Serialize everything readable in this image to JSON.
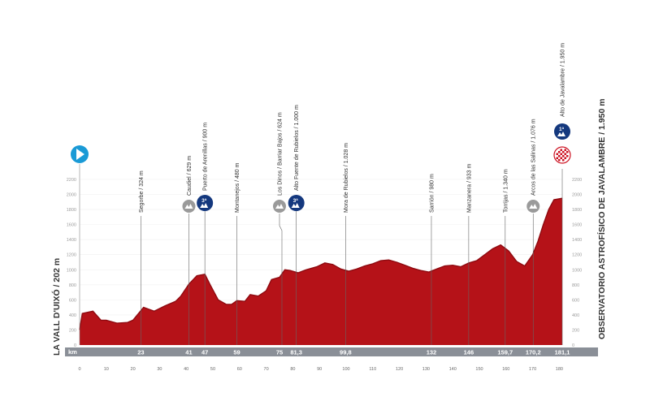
{
  "chart_data": {
    "type": "area",
    "start_label": "LA VALL D'UIXÓ / 202 m",
    "finish_label": "OBSERVATORIO ASTROFÍSICO DE JAVALAMBRE / 1.950 m",
    "km_label": "km",
    "xlim": [
      0,
      181.1
    ],
    "ylim": [
      0,
      2200
    ],
    "y_ticks_left": [
      0,
      200,
      400,
      600,
      800,
      1000,
      1200,
      1400,
      1600,
      1800,
      2000,
      2200
    ],
    "y_ticks_right": [
      0,
      200,
      400,
      600,
      800,
      1000,
      1200,
      1400,
      1600,
      1800,
      2000,
      2200
    ],
    "x_ticks": [
      0,
      10,
      20,
      30,
      40,
      50,
      60,
      70,
      80,
      90,
      100,
      110,
      120,
      130,
      140,
      150,
      160,
      170,
      180
    ],
    "km_markers": [
      {
        "km": 23,
        "label": "23"
      },
      {
        "km": 41,
        "label": "41"
      },
      {
        "km": 47,
        "label": "47"
      },
      {
        "km": 59,
        "label": "59"
      },
      {
        "km": 75,
        "label": "75"
      },
      {
        "km": 81.3,
        "label": "81,3"
      },
      {
        "km": 99.8,
        "label": "99,8"
      },
      {
        "km": 132,
        "label": "132"
      },
      {
        "km": 146,
        "label": "146"
      },
      {
        "km": 159.7,
        "label": "159,7"
      },
      {
        "km": 170.2,
        "label": "170,2"
      },
      {
        "km": 181.1,
        "label": "181,1"
      }
    ],
    "profile": {
      "x": [
        0,
        1,
        5,
        8,
        10,
        14,
        18,
        20,
        24,
        28,
        32,
        36,
        38,
        41,
        44,
        47,
        49,
        52,
        55,
        57,
        59,
        62,
        64,
        67,
        70,
        72,
        75,
        77,
        79,
        82,
        85,
        89,
        92,
        95,
        98,
        101,
        104,
        107,
        110,
        113,
        116,
        119,
        122,
        125,
        128,
        131,
        134,
        137,
        140,
        143,
        146,
        149,
        152,
        155,
        158,
        161,
        164,
        167,
        170,
        172,
        174,
        176,
        178,
        181.1
      ],
      "y": [
        202,
        420,
        450,
        330,
        330,
        290,
        300,
        330,
        500,
        450,
        520,
        580,
        650,
        810,
        920,
        940,
        800,
        600,
        540,
        540,
        590,
        580,
        670,
        650,
        720,
        870,
        900,
        1000,
        990,
        960,
        1000,
        1040,
        1090,
        1070,
        1010,
        980,
        1010,
        1050,
        1080,
        1120,
        1130,
        1100,
        1060,
        1020,
        990,
        970,
        1010,
        1050,
        1060,
        1040,
        1090,
        1120,
        1200,
        1280,
        1330,
        1250,
        1110,
        1050,
        1200,
        1380,
        1600,
        1800,
        1930,
        1950
      ]
    },
    "points": [
      {
        "km": 0,
        "type": "start",
        "label": ""
      },
      {
        "km": 23,
        "type": "place",
        "label": "Segorbe / 324 m"
      },
      {
        "km": 41,
        "type": "sprint",
        "label": "Caudiel / 629 m"
      },
      {
        "km": 47,
        "type": "climb3",
        "badge": "3ª",
        "label": "Puerto de Arenillas / 900 m"
      },
      {
        "km": 59,
        "type": "place",
        "label": "Montanejos / 480 m"
      },
      {
        "km": 75,
        "type": "sprint",
        "label": "Los Dinos / Barriar Bajos / 624 m"
      },
      {
        "km": 81.3,
        "type": "climb3",
        "badge": "3ª",
        "label": "Alto Fuente de Rubielos / 1.000 m"
      },
      {
        "km": 99.8,
        "type": "place",
        "label": "Mora de Rubielos / 1.028 m"
      },
      {
        "km": 132,
        "type": "place",
        "label": "Sarrión / 980 m"
      },
      {
        "km": 146,
        "type": "place",
        "label": "Manzanera / 933 m"
      },
      {
        "km": 159.7,
        "type": "place",
        "label": "Torrijas / 1.340 m"
      },
      {
        "km": 170.2,
        "type": "sprint",
        "label": "Arcos de las Salinas / 1.076 m"
      },
      {
        "km": 181.1,
        "type": "climb1",
        "badge": "1ª",
        "label": "Alto de Javalambre / 1.950 m"
      }
    ],
    "colors": {
      "fill": "#b51218",
      "fill_dark": "#8e0a10",
      "climb_badge": "#14387e",
      "sprint_badge": "#9a9a9a",
      "start_badge": "#1a9ad6",
      "axis_bar": "#8a8f97"
    }
  }
}
